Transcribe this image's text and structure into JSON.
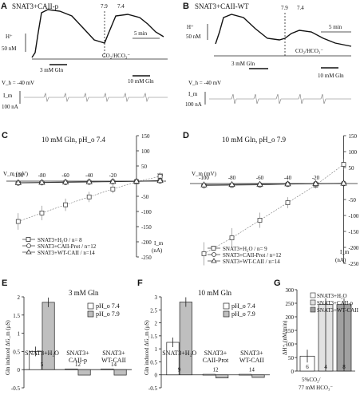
{
  "panels": {
    "A": {
      "letter": "A",
      "title": "SNAT3+CAII-p",
      "ph1": "7.9",
      "ph2": "7.4",
      "h_label": "H⁺",
      "h_scale": "50 nM",
      "time_scale": "5 min",
      "gln1": "3 mM Gln",
      "gln2": "10 mM Gln",
      "co2": "CO₂/HCO₃⁻",
      "vh": "V_h = -40 mV",
      "im": "I_m",
      "i_scale": "100 nA"
    },
    "B": {
      "letter": "B",
      "title": "SNAT3+CAII-WT",
      "ph1": "7.9",
      "ph2": "7.4",
      "h_label": "H⁺",
      "h_scale": "50 nM",
      "time_scale": "5 min",
      "gln1": "3 mM Gln",
      "gln2": "10 mM Gln",
      "co2": "CO₂/HCO₃⁻",
      "vh": "V_h = -40 mV",
      "im": "I_m",
      "i_scale": "100 nA"
    },
    "C": {
      "letter": "C",
      "title": "10 mM Gln, pH_o 7.4",
      "vm_label": "V_m (mV)",
      "im_label": "I_m",
      "im_unit": "(nA)",
      "xticks": [
        "-100",
        "-80",
        "-60",
        "-40",
        "-20",
        "20"
      ],
      "yticks": [
        "150",
        "100",
        "50",
        "-50",
        "-100",
        "-150",
        "-200",
        "-250"
      ],
      "legend": [
        "SNAT3+H₂O / n= 8",
        "SNAT3+CAII-Prot / n=12",
        "SNAT3+WT-CAII / n=14"
      ]
    },
    "D": {
      "letter": "D",
      "title": "10 mM Gln, pH_o 7.9",
      "vm_label": "V_m (mV)",
      "im_label": "I_m",
      "im_unit": "(nA)",
      "xticks": [
        "-100",
        "-80",
        "-60",
        "-40",
        "-20",
        "20"
      ],
      "yticks": [
        "150",
        "100",
        "50",
        "-50",
        "-100",
        "-150",
        "-200",
        "-250"
      ],
      "legend": [
        "SNAT3+H₂O / n= 9",
        "SNAT3+CAII-Prot / n=12",
        "SNAT3+WT-CAII / n=14"
      ]
    },
    "E": {
      "letter": "E",
      "title": "3 mM Gln",
      "ylabel": "Gln induced ΔG_m (μS)",
      "yticks": [
        "2",
        "1.5",
        "1",
        "0.5",
        "0",
        "-0.5"
      ],
      "legend": [
        "pH_o 7.4",
        "pH_o 7.9"
      ],
      "groups": [
        "SNAT3+H₂O",
        "SNAT3+\nCAII-p",
        "SNAT3+\nWT-CAII"
      ],
      "ns": [
        "5",
        "12",
        "14"
      ]
    },
    "F": {
      "letter": "F",
      "title": "10 mM Gln",
      "ylabel": "Gln induced ΔG_m (μS)",
      "yticks": [
        "3",
        "2.5",
        "2",
        "1.5",
        "1",
        "0.5",
        "0",
        "-0.5"
      ],
      "legend": [
        "pH_o 7.4",
        "pH_o 7.9"
      ],
      "groups": [
        "SNAT3+H₂O",
        "SNAT3+\nCAII-Prot",
        "SNAT3+\nWT-CAII"
      ],
      "ns": [
        "9",
        "12",
        "14"
      ]
    },
    "G": {
      "letter": "G",
      "ylabel": "ΔH⁺ᵢ (nM/min)",
      "yticks": [
        "300",
        "250",
        "200",
        "150",
        "100",
        "50",
        "0"
      ],
      "legend": [
        "SNAT3+H₂O",
        "SNAT3+CAII-p",
        "SNAT3+WT-CAII"
      ],
      "ns": [
        "6",
        "4",
        "8"
      ],
      "xlabel1": "5%CO₂/",
      "xlabel2": "77 mM HCO₃⁻"
    }
  },
  "chart_data": [
    {
      "type": "line",
      "panel": "C",
      "xlabel": "V_m (mV)",
      "ylabel": "I_m (nA)",
      "xlim": [
        -110,
        25
      ],
      "ylim": [
        -250,
        150
      ],
      "x": [
        -100,
        -80,
        -60,
        -40,
        -20,
        0,
        20
      ],
      "series": [
        {
          "name": "SNAT3+H₂O / n= 8",
          "values": [
            -133,
            -105,
            -78,
            -52,
            -26,
            -2,
            16
          ]
        },
        {
          "name": "SNAT3+CAII-Prot / n=12",
          "values": [
            -6,
            -5,
            -4,
            -3,
            -2,
            -1,
            1
          ]
        },
        {
          "name": "SNAT3+WT-CAII / n=14",
          "values": [
            -5,
            -4,
            -3,
            -2,
            -1,
            0,
            2
          ]
        }
      ]
    },
    {
      "type": "line",
      "panel": "D",
      "xlabel": "V_m (mV)",
      "ylabel": "I_m (nA)",
      "xlim": [
        -110,
        10
      ],
      "ylim": [
        -250,
        150
      ],
      "x": [
        -100,
        -80,
        -60,
        -40,
        -20,
        0
      ],
      "series": [
        {
          "name": "SNAT3+H₂O / n= 9",
          "values": [
            -220,
            -170,
            -115,
            -60,
            -5,
            60
          ]
        },
        {
          "name": "SNAT3+CAII-Prot / n=12",
          "values": [
            -6,
            -5,
            -4,
            -2,
            -1,
            0
          ]
        },
        {
          "name": "SNAT3+WT-CAII / n=14",
          "values": [
            -4,
            -3,
            -2,
            -1,
            0,
            1
          ]
        }
      ]
    },
    {
      "type": "bar",
      "panel": "E",
      "title": "3 mM Gln",
      "ylabel": "Gln induced ΔG_m (μS)",
      "ylim": [
        -0.5,
        2
      ],
      "categories": [
        "SNAT3+H₂O",
        "SNAT3+CAII-p",
        "SNAT3+WT-CAII"
      ],
      "series": [
        {
          "name": "pH_o 7.4",
          "values": [
            0.5,
            0.02,
            0.02
          ]
        },
        {
          "name": "pH_o 7.9",
          "values": [
            1.85,
            -0.15,
            -0.15
          ]
        }
      ]
    },
    {
      "type": "bar",
      "panel": "F",
      "title": "10 mM Gln",
      "ylabel": "Gln induced ΔG_m (μS)",
      "ylim": [
        -0.5,
        3
      ],
      "categories": [
        "SNAT3+H₂O",
        "SNAT3+CAII-Prot",
        "SNAT3+WT-CAII"
      ],
      "series": [
        {
          "name": "pH_o 7.4",
          "values": [
            1.25,
            0.02,
            0.02
          ]
        },
        {
          "name": "pH_o 7.9",
          "values": [
            2.8,
            -0.12,
            -0.1
          ]
        }
      ]
    },
    {
      "type": "bar",
      "panel": "G",
      "ylabel": "ΔH⁺ᵢ (nM/min)",
      "ylim": [
        0,
        300
      ],
      "categories": [
        "SNAT3+H₂O",
        "SNAT3+CAII-p",
        "SNAT3+WT-CAII"
      ],
      "series": [
        {
          "name": "5%CO₂/77 mM HCO₃⁻",
          "values": [
            55,
            245,
            245
          ]
        }
      ]
    }
  ]
}
